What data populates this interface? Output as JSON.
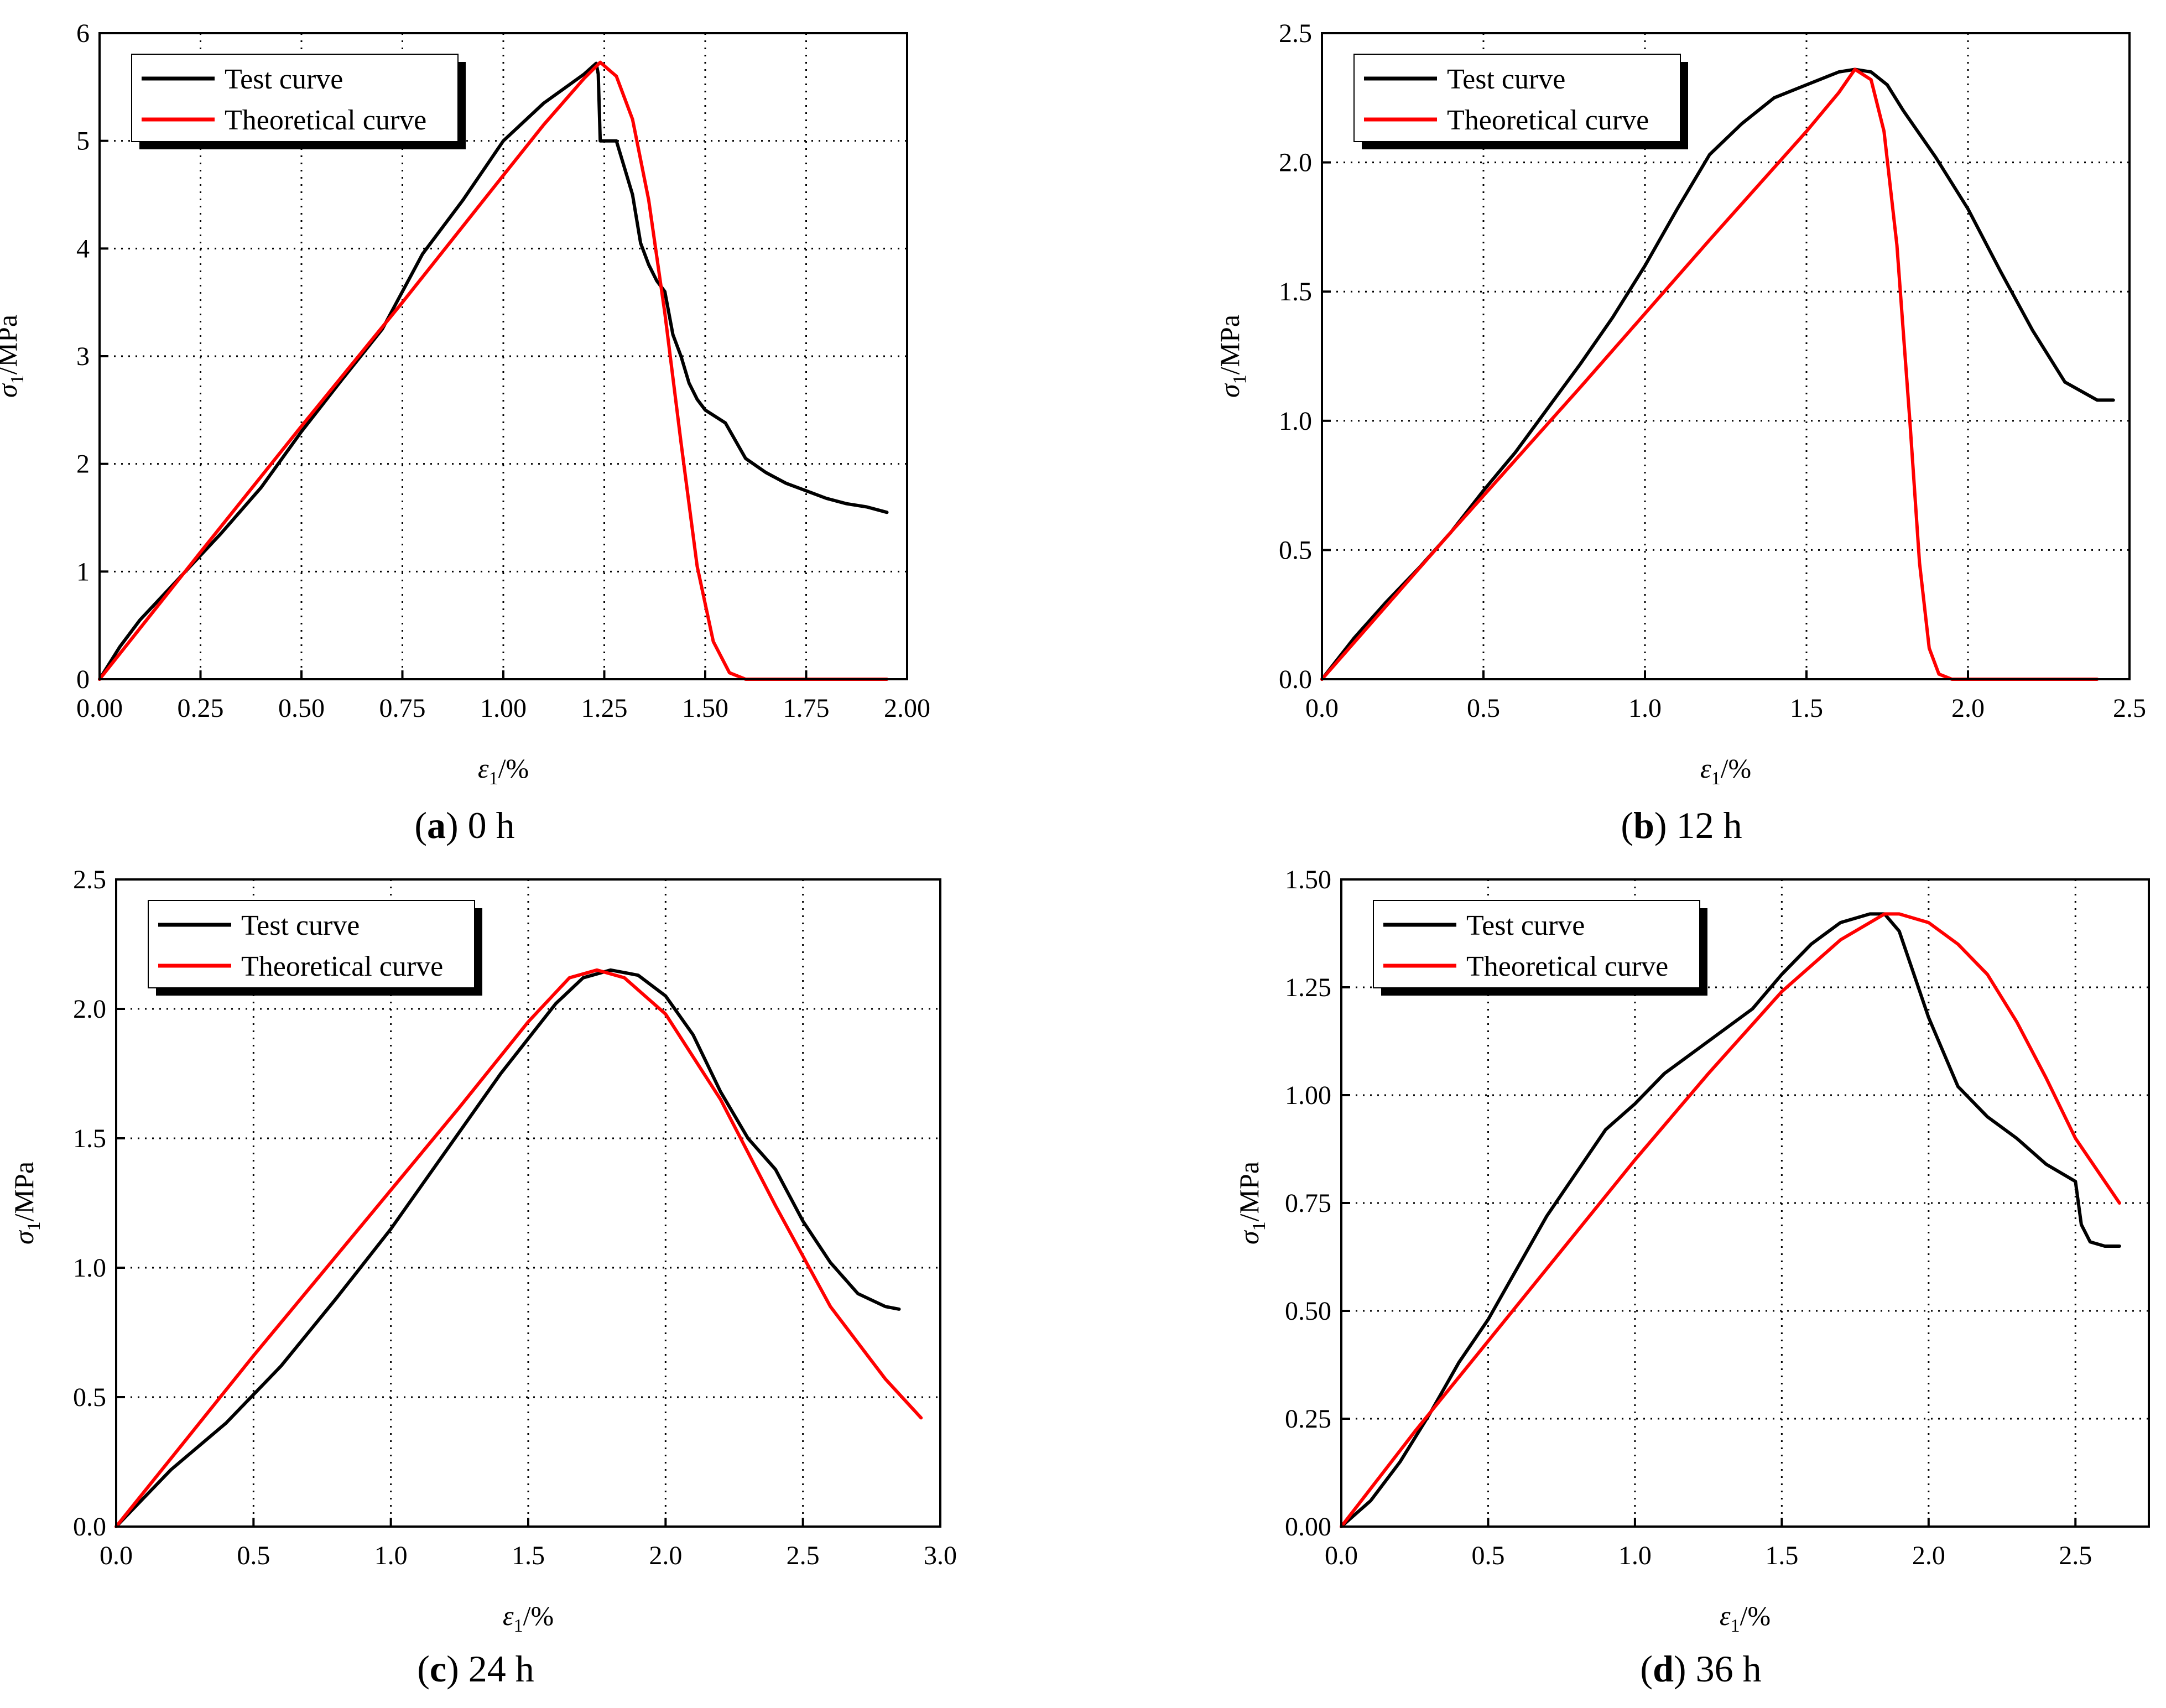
{
  "figure": {
    "legend": {
      "test": "Test curve",
      "theory": "Theoretical curve"
    },
    "colors": {
      "test": "#000000",
      "theory": "#ff0000",
      "grid": "#000000"
    }
  },
  "chart_data": [
    {
      "type": "line",
      "id": "a",
      "caption_letter": "a",
      "caption_rest": " 0 h",
      "xlabel": "ε1/%",
      "ylabel": "σ1/MPa",
      "xlim": [
        0,
        2.0
      ],
      "ylim": [
        0,
        6
      ],
      "xticks": [
        0,
        0.25,
        0.5,
        0.75,
        1.0,
        1.25,
        1.5,
        1.75,
        2.0
      ],
      "xtick_labels": [
        "0.00",
        "0.25",
        "0.50",
        "0.75",
        "1.00",
        "1.25",
        "1.50",
        "1.75",
        "2.00"
      ],
      "yticks": [
        0,
        1,
        2,
        3,
        4,
        5,
        6
      ],
      "ytick_labels": [
        "0",
        "1",
        "2",
        "3",
        "4",
        "5",
        "6"
      ],
      "grid": true,
      "legend_position": "top-left",
      "series": [
        {
          "name": "Test curve",
          "x": [
            0,
            0.05,
            0.1,
            0.2,
            0.3,
            0.4,
            0.5,
            0.6,
            0.7,
            0.8,
            0.9,
            1.0,
            1.1,
            1.2,
            1.23,
            1.235,
            1.24,
            1.26,
            1.28,
            1.3,
            1.32,
            1.34,
            1.36,
            1.38,
            1.4,
            1.42,
            1.44,
            1.46,
            1.48,
            1.5,
            1.55,
            1.6,
            1.65,
            1.7,
            1.75,
            1.8,
            1.85,
            1.9,
            1.95
          ],
          "y": [
            0,
            0.3,
            0.55,
            0.95,
            1.35,
            1.78,
            2.3,
            2.78,
            3.25,
            3.95,
            4.45,
            5.0,
            5.35,
            5.62,
            5.72,
            5.62,
            5.0,
            5.0,
            5.0,
            4.75,
            4.5,
            4.05,
            3.85,
            3.7,
            3.6,
            3.2,
            3.0,
            2.75,
            2.6,
            2.5,
            2.38,
            2.05,
            1.92,
            1.82,
            1.75,
            1.68,
            1.63,
            1.6,
            1.55
          ]
        },
        {
          "name": "Theoretical curve",
          "x": [
            0,
            0.25,
            0.5,
            0.75,
            1.0,
            1.1,
            1.2,
            1.24,
            1.28,
            1.32,
            1.36,
            1.4,
            1.44,
            1.48,
            1.52,
            1.56,
            1.6,
            1.65,
            1.75,
            1.85,
            1.95
          ],
          "y": [
            0,
            1.18,
            2.35,
            3.5,
            4.68,
            5.15,
            5.58,
            5.73,
            5.6,
            5.2,
            4.45,
            3.4,
            2.2,
            1.05,
            0.35,
            0.06,
            0,
            0,
            0,
            0,
            0
          ]
        }
      ]
    },
    {
      "type": "line",
      "id": "b",
      "caption_letter": "b",
      "caption_rest": " 12 h",
      "xlabel": "ε1/%",
      "ylabel": "σ1/MPa",
      "xlim": [
        0,
        2.5
      ],
      "ylim": [
        0,
        2.5
      ],
      "xticks": [
        0,
        0.5,
        1.0,
        1.5,
        2.0,
        2.5
      ],
      "xtick_labels": [
        "0.0",
        "0.5",
        "1.0",
        "1.5",
        "2.0",
        "2.5"
      ],
      "yticks": [
        0,
        0.5,
        1.0,
        1.5,
        2.0,
        2.5
      ],
      "ytick_labels": [
        "0.0",
        "0.5",
        "1.0",
        "1.5",
        "2.0",
        "2.5"
      ],
      "grid": true,
      "legend_position": "top-left",
      "series": [
        {
          "name": "Test curve",
          "x": [
            0,
            0.1,
            0.2,
            0.3,
            0.4,
            0.5,
            0.6,
            0.7,
            0.8,
            0.9,
            1.0,
            1.1,
            1.2,
            1.3,
            1.4,
            1.5,
            1.6,
            1.65,
            1.7,
            1.75,
            1.8,
            1.9,
            2.0,
            2.1,
            2.2,
            2.3,
            2.4,
            2.45
          ],
          "y": [
            0,
            0.16,
            0.3,
            0.43,
            0.57,
            0.73,
            0.88,
            1.05,
            1.22,
            1.4,
            1.6,
            1.82,
            2.03,
            2.15,
            2.25,
            2.3,
            2.35,
            2.36,
            2.35,
            2.3,
            2.2,
            2.02,
            1.82,
            1.58,
            1.35,
            1.15,
            1.08,
            1.08
          ]
        },
        {
          "name": "Theoretical curve",
          "x": [
            0,
            0.4,
            0.8,
            1.2,
            1.5,
            1.6,
            1.65,
            1.7,
            1.74,
            1.78,
            1.82,
            1.85,
            1.88,
            1.91,
            1.95,
            2.1,
            2.4
          ],
          "y": [
            0,
            0.57,
            1.13,
            1.7,
            2.12,
            2.27,
            2.36,
            2.32,
            2.12,
            1.68,
            1.0,
            0.45,
            0.12,
            0.02,
            0,
            0,
            0
          ]
        }
      ]
    },
    {
      "type": "line",
      "id": "c",
      "caption_letter": "c",
      "caption_rest": " 24 h",
      "xlabel": "ε1/%",
      "ylabel": "σ1/MPa",
      "xlim": [
        0,
        3.0
      ],
      "ylim": [
        0,
        2.5
      ],
      "xticks": [
        0,
        0.5,
        1.0,
        1.5,
        2.0,
        2.5,
        3.0
      ],
      "xtick_labels": [
        "0.0",
        "0.5",
        "1.0",
        "1.5",
        "2.0",
        "2.5",
        "3.0"
      ],
      "yticks": [
        0,
        0.5,
        1.0,
        1.5,
        2.0,
        2.5
      ],
      "ytick_labels": [
        "0.0",
        "0.5",
        "1.0",
        "1.5",
        "2.0",
        "2.5"
      ],
      "grid": true,
      "legend_position": "top-left",
      "series": [
        {
          "name": "Test curve",
          "x": [
            0,
            0.2,
            0.4,
            0.6,
            0.8,
            1.0,
            1.2,
            1.4,
            1.6,
            1.7,
            1.8,
            1.9,
            2.0,
            2.1,
            2.2,
            2.3,
            2.4,
            2.5,
            2.6,
            2.7,
            2.8,
            2.85
          ],
          "y": [
            0,
            0.22,
            0.4,
            0.62,
            0.88,
            1.15,
            1.45,
            1.75,
            2.02,
            2.12,
            2.15,
            2.13,
            2.05,
            1.9,
            1.68,
            1.5,
            1.38,
            1.18,
            1.02,
            0.9,
            0.85,
            0.84
          ]
        },
        {
          "name": "Theoretical curve",
          "x": [
            0,
            0.25,
            0.5,
            0.75,
            1.0,
            1.25,
            1.5,
            1.65,
            1.75,
            1.85,
            2.0,
            2.2,
            2.4,
            2.6,
            2.8,
            2.93
          ],
          "y": [
            0,
            0.33,
            0.66,
            0.98,
            1.3,
            1.62,
            1.95,
            2.12,
            2.15,
            2.12,
            1.98,
            1.65,
            1.24,
            0.85,
            0.57,
            0.42
          ]
        }
      ]
    },
    {
      "type": "line",
      "id": "d",
      "caption_letter": "d",
      "caption_rest": " 36 h",
      "xlabel": "ε1/%",
      "ylabel": "σ1/MPa",
      "xlim": [
        0,
        2.75
      ],
      "ylim": [
        0,
        1.5
      ],
      "xticks": [
        0,
        0.5,
        1.0,
        1.5,
        2.0,
        2.5
      ],
      "xtick_labels": [
        "0.0",
        "0.5",
        "1.0",
        "1.5",
        "2.0",
        "2.5"
      ],
      "yticks": [
        0,
        0.25,
        0.5,
        0.75,
        1.0,
        1.25,
        1.5
      ],
      "ytick_labels": [
        "0.00",
        "0.25",
        "0.50",
        "0.75",
        "1.00",
        "1.25",
        "1.50"
      ],
      "grid": true,
      "legend_position": "top-left",
      "series": [
        {
          "name": "Test curve",
          "x": [
            0,
            0.05,
            0.1,
            0.2,
            0.3,
            0.4,
            0.5,
            0.6,
            0.7,
            0.8,
            0.9,
            1.0,
            1.1,
            1.2,
            1.3,
            1.4,
            1.5,
            1.6,
            1.7,
            1.8,
            1.85,
            1.9,
            1.95,
            2.0,
            2.1,
            2.2,
            2.3,
            2.4,
            2.5,
            2.52,
            2.55,
            2.6,
            2.65
          ],
          "y": [
            0,
            0.03,
            0.06,
            0.15,
            0.26,
            0.38,
            0.48,
            0.6,
            0.72,
            0.82,
            0.92,
            0.98,
            1.05,
            1.1,
            1.15,
            1.2,
            1.28,
            1.35,
            1.4,
            1.42,
            1.42,
            1.38,
            1.28,
            1.18,
            1.02,
            0.95,
            0.9,
            0.84,
            0.8,
            0.7,
            0.66,
            0.65,
            0.65
          ]
        },
        {
          "name": "Theoretical curve",
          "x": [
            0,
            0.25,
            0.5,
            0.75,
            1.0,
            1.25,
            1.5,
            1.7,
            1.85,
            1.9,
            2.0,
            2.1,
            2.2,
            2.3,
            2.4,
            2.5,
            2.65
          ],
          "y": [
            0,
            0.22,
            0.43,
            0.64,
            0.85,
            1.05,
            1.24,
            1.36,
            1.42,
            1.42,
            1.4,
            1.35,
            1.28,
            1.17,
            1.04,
            0.9,
            0.75
          ]
        }
      ]
    }
  ]
}
